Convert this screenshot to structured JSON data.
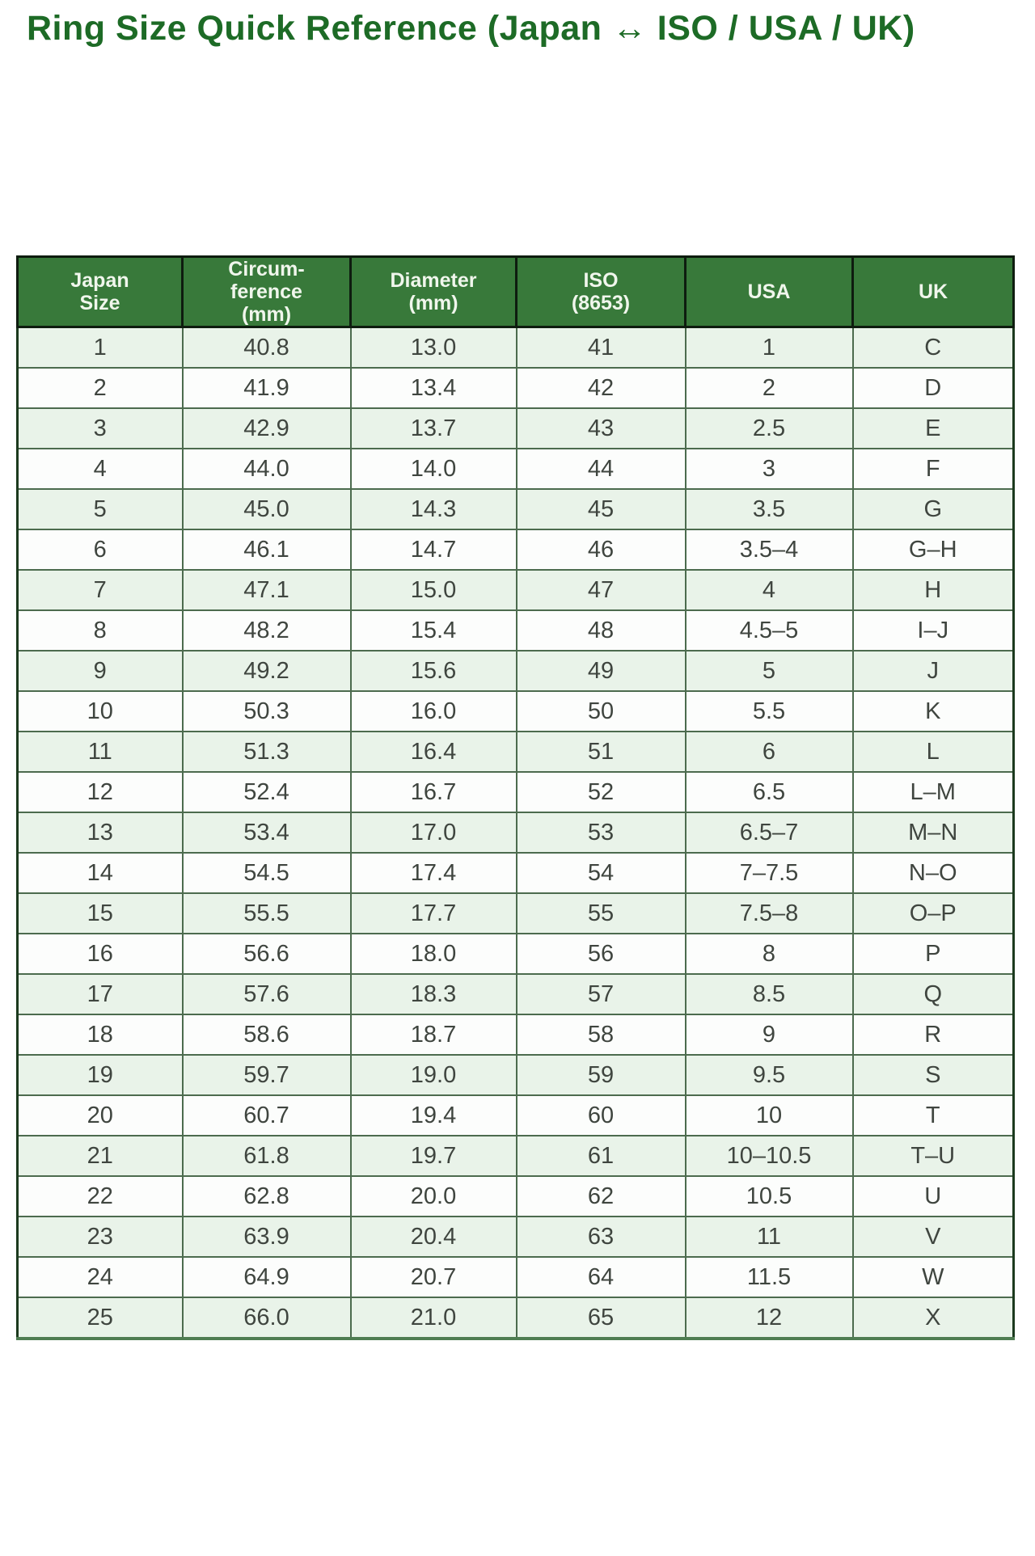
{
  "page": {
    "title": "Ring Size Quick Reference (Japan ↔ ISO / USA / UK)"
  },
  "colors": {
    "title_green": "#1d6b26",
    "header_bg": "#38793a",
    "header_text": "#f0f6ec",
    "row_green_bg": "#e9f3e9",
    "row_white_bg": "#fcfdfc",
    "grid_line": "#4c6b4e",
    "cell_text": "#3f453f"
  },
  "table": {
    "headers": {
      "japan_size": "Japan\nSize",
      "circumference": "Circum-\nference\n(mm)",
      "diameter": "Diameter\n(mm)",
      "iso": "ISO\n(8653)",
      "usa": "USA",
      "uk": "UK"
    },
    "rows": [
      [
        "1",
        "40.8",
        "13.0",
        "41",
        "1",
        "C"
      ],
      [
        "2",
        "41.9",
        "13.4",
        "42",
        "2",
        "D"
      ],
      [
        "3",
        "42.9",
        "13.7",
        "43",
        "2.5",
        "E"
      ],
      [
        "4",
        "44.0",
        "14.0",
        "44",
        "3",
        "F"
      ],
      [
        "5",
        "45.0",
        "14.3",
        "45",
        "3.5",
        "G"
      ],
      [
        "6",
        "46.1",
        "14.7",
        "46",
        "3.5–4",
        "G–H"
      ],
      [
        "7",
        "47.1",
        "15.0",
        "47",
        "4",
        "H"
      ],
      [
        "8",
        "48.2",
        "15.4",
        "48",
        "4.5–5",
        "I–J"
      ],
      [
        "9",
        "49.2",
        "15.6",
        "49",
        "5",
        "J"
      ],
      [
        "10",
        "50.3",
        "16.0",
        "50",
        "5.5",
        "K"
      ],
      [
        "11",
        "51.3",
        "16.4",
        "51",
        "6",
        "L"
      ],
      [
        "12",
        "52.4",
        "16.7",
        "52",
        "6.5",
        "L–M"
      ],
      [
        "13",
        "53.4",
        "17.0",
        "53",
        "6.5–7",
        "M–N"
      ],
      [
        "14",
        "54.5",
        "17.4",
        "54",
        "7–7.5",
        "N–O"
      ],
      [
        "15",
        "55.5",
        "17.7",
        "55",
        "7.5–8",
        "O–P"
      ],
      [
        "16",
        "56.6",
        "18.0",
        "56",
        "8",
        "P"
      ],
      [
        "17",
        "57.6",
        "18.3",
        "57",
        "8.5",
        "Q"
      ],
      [
        "18",
        "58.6",
        "18.7",
        "58",
        "9",
        "R"
      ],
      [
        "19",
        "59.7",
        "19.0",
        "59",
        "9.5",
        "S"
      ],
      [
        "20",
        "60.7",
        "19.4",
        "60",
        "10",
        "T"
      ],
      [
        "21",
        "61.8",
        "19.7",
        "61",
        "10–10.5",
        "T–U"
      ],
      [
        "22",
        "62.8",
        "20.0",
        "62",
        "10.5",
        "U"
      ],
      [
        "23",
        "63.9",
        "20.4",
        "63",
        "11",
        "V"
      ],
      [
        "24",
        "64.9",
        "20.7",
        "64",
        "11.5",
        "W"
      ],
      [
        "25",
        "66.0",
        "21.0",
        "65",
        "12",
        "X"
      ]
    ]
  }
}
